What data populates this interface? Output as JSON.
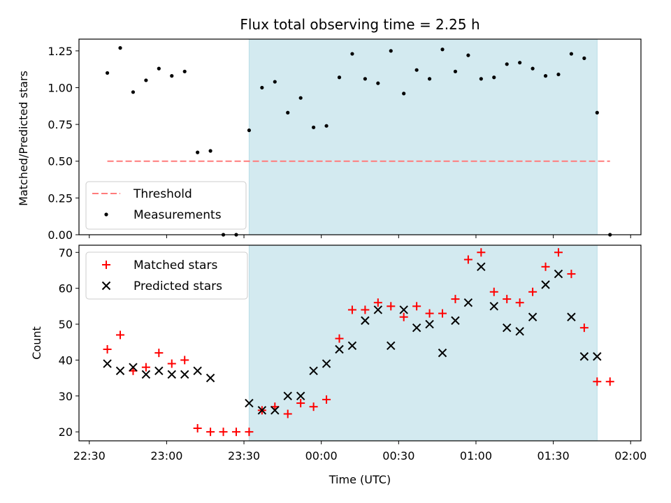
{
  "chart_data": [
    {
      "type": "scatter",
      "title": "Flux total observing time = 2.25 h",
      "ylabel": "Matched/Predicted stars",
      "xlabel": "",
      "ylim": [
        0,
        1.33
      ],
      "yticks": [
        "0.00",
        "0.25",
        "0.50",
        "0.75",
        "1.00",
        "1.25"
      ],
      "shaded_region": {
        "start": "23:32",
        "end": "01:47",
        "color": "#d3eaf0"
      },
      "threshold": {
        "name": "Threshold",
        "y": 0.5,
        "x_start": "22:37",
        "x_end": "01:52",
        "color": "#ff7b7b"
      },
      "series": [
        {
          "name": "Measurements",
          "color": "#000000",
          "x": [
            "22:37",
            "22:42",
            "22:47",
            "22:52",
            "22:57",
            "23:02",
            "23:07",
            "23:12",
            "23:17",
            "23:22",
            "23:27",
            "23:32",
            "23:37",
            "23:42",
            "23:47",
            "23:52",
            "23:57",
            "00:02",
            "00:07",
            "00:12",
            "00:17",
            "00:22",
            "00:27",
            "00:32",
            "00:37",
            "00:42",
            "00:47",
            "00:52",
            "00:57",
            "01:02",
            "01:07",
            "01:12",
            "01:17",
            "01:22",
            "01:27",
            "01:32",
            "01:37",
            "01:42",
            "01:47",
            "01:52"
          ],
          "y": [
            1.1,
            1.27,
            0.97,
            1.05,
            1.13,
            1.08,
            1.11,
            0.56,
            0.57,
            0.0,
            0.0,
            0.71,
            1.0,
            1.04,
            0.83,
            0.93,
            0.73,
            0.74,
            1.07,
            1.23,
            1.06,
            1.03,
            1.25,
            0.96,
            1.12,
            1.06,
            1.26,
            1.11,
            1.22,
            1.06,
            1.07,
            1.16,
            1.17,
            1.13,
            1.08,
            1.09,
            1.23,
            1.2,
            0.83,
            0.0
          ]
        }
      ],
      "legend": {
        "position": "lower-left",
        "entries": [
          "Threshold",
          "Measurements"
        ]
      }
    },
    {
      "type": "scatter",
      "title": "",
      "ylabel": "Count",
      "xlabel": "Time (UTC)",
      "ylim": [
        17.5,
        72
      ],
      "yticks": [
        "20",
        "30",
        "40",
        "50",
        "60",
        "70"
      ],
      "xticks": [
        "22:30",
        "23:00",
        "23:30",
        "00:00",
        "00:30",
        "01:00",
        "01:30",
        "02:00"
      ],
      "shaded_region": {
        "start": "23:32",
        "end": "01:47",
        "color": "#d3eaf0"
      },
      "series": [
        {
          "name": "Matched stars",
          "marker": "plus",
          "color": "#ff0000",
          "x": [
            "22:37",
            "22:42",
            "22:47",
            "22:52",
            "22:57",
            "23:02",
            "23:07",
            "23:12",
            "23:17",
            "23:22",
            "23:27",
            "23:32",
            "23:37",
            "23:42",
            "23:47",
            "23:52",
            "23:57",
            "00:02",
            "00:07",
            "00:12",
            "00:17",
            "00:22",
            "00:27",
            "00:32",
            "00:37",
            "00:42",
            "00:47",
            "00:52",
            "00:57",
            "01:02",
            "01:07",
            "01:12",
            "01:17",
            "01:22",
            "01:27",
            "01:32",
            "01:37",
            "01:42",
            "01:47",
            "01:52"
          ],
          "y": [
            43,
            47,
            37,
            38,
            42,
            39,
            40,
            21,
            20,
            20,
            20,
            20,
            26,
            27,
            25,
            28,
            27,
            29,
            46,
            54,
            54,
            56,
            55,
            52,
            55,
            53,
            53,
            57,
            68,
            70,
            59,
            57,
            56,
            59,
            66,
            70,
            64,
            49,
            34,
            34
          ]
        },
        {
          "name": "Predicted stars",
          "marker": "x",
          "color": "#000000",
          "x": [
            "22:37",
            "22:42",
            "22:47",
            "22:52",
            "22:57",
            "23:02",
            "23:07",
            "23:12",
            "23:17",
            "23:32",
            "23:37",
            "23:42",
            "23:47",
            "23:52",
            "23:57",
            "00:02",
            "00:07",
            "00:12",
            "00:17",
            "00:22",
            "00:27",
            "00:32",
            "00:37",
            "00:42",
            "00:47",
            "00:52",
            "00:57",
            "01:02",
            "01:07",
            "01:12",
            "01:17",
            "01:22",
            "01:27",
            "01:32",
            "01:37",
            "01:42",
            "01:47"
          ],
          "y": [
            39,
            37,
            38,
            36,
            37,
            36,
            36,
            37,
            35,
            28,
            26,
            26,
            30,
            30,
            37,
            39,
            43,
            44,
            51,
            54,
            44,
            54,
            49,
            50,
            42,
            51,
            56,
            66,
            55,
            49,
            48,
            52,
            61,
            64,
            52,
            41,
            41
          ]
        }
      ],
      "legend": {
        "position": "upper-left",
        "entries": [
          "Matched stars",
          "Predicted stars"
        ]
      }
    }
  ]
}
